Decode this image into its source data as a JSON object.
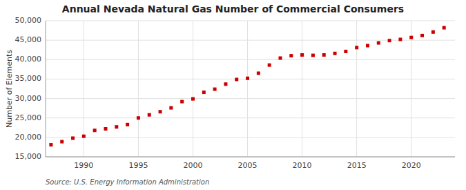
{
  "chart_data": {
    "type": "scatter",
    "title": "Annual Nevada Natural Gas Number of Commercial Consumers",
    "ylabel": "Number of Elements",
    "source": "Source: U.S. Energy Information Administration",
    "x": [
      1987,
      1988,
      1989,
      1990,
      1991,
      1992,
      1993,
      1994,
      1995,
      1996,
      1997,
      1998,
      1999,
      2000,
      2001,
      2002,
      2003,
      2004,
      2005,
      2006,
      2007,
      2008,
      2009,
      2010,
      2011,
      2012,
      2013,
      2014,
      2015,
      2016,
      2017,
      2018,
      2019,
      2020,
      2021,
      2022,
      2023
    ],
    "values": [
      18100,
      18900,
      19800,
      20300,
      21800,
      22200,
      22700,
      23300,
      25000,
      25800,
      26600,
      27600,
      29200,
      29900,
      31600,
      32400,
      33700,
      34900,
      35200,
      36500,
      38600,
      40400,
      41000,
      41200,
      41100,
      41200,
      41600,
      42100,
      43100,
      43600,
      44300,
      44900,
      45200,
      45700,
      46200,
      47100,
      48200
    ],
    "color": "#cc0000",
    "marker": "square",
    "grid": true,
    "xlim": [
      1986.5,
      2024
    ],
    "xticks": [
      1990,
      1995,
      2000,
      2005,
      2010,
      2015,
      2020
    ],
    "ylim": [
      15000,
      50000
    ],
    "yticks": [
      {
        "value": 15000,
        "label": "15,000"
      },
      {
        "value": 20000,
        "label": "20,000"
      },
      {
        "value": 25000,
        "label": "25,000"
      },
      {
        "value": 30000,
        "label": "30,000"
      },
      {
        "value": 35000,
        "label": "35,000"
      },
      {
        "value": 40000,
        "label": "40,000"
      },
      {
        "value": 45000,
        "label": "45,000"
      },
      {
        "value": 50000,
        "label": "50,000"
      }
    ]
  }
}
